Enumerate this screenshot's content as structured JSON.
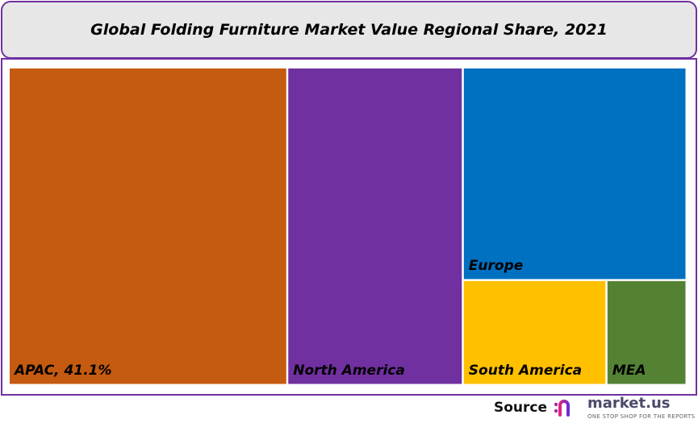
{
  "chart_data": {
    "type": "treemap",
    "title": "Global Folding Furniture Market Value Regional Share, 2021",
    "units": "%",
    "items": [
      {
        "name": "APAC",
        "value": 41.1,
        "label": "APAC, 41.1%",
        "color": "#c55a11"
      },
      {
        "name": "North America",
        "value": 25.9,
        "label": "North America",
        "color": "#7030a0"
      },
      {
        "name": "Europe",
        "value": 22.1,
        "label": "Europe",
        "color": "#0070c0"
      },
      {
        "name": "South America",
        "value": 7.0,
        "label": "South America",
        "color": "#ffc000"
      },
      {
        "name": "MEA",
        "value": 3.9,
        "label": "MEA",
        "color": "#548235"
      }
    ]
  },
  "source": {
    "label": "Source",
    "brand": "market.us",
    "tagline": "ONE STOP SHOP FOR THE REPORTS"
  },
  "colors": {
    "frame": "#7030a0",
    "title_bg": "#e7e7e7"
  }
}
